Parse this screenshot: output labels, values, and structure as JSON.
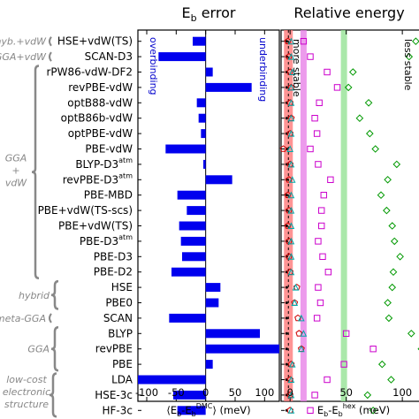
{
  "chart_data": [
    {
      "type": "bar",
      "orientation": "horizontal",
      "title": "E_b error",
      "title_main": "E",
      "title_sub": "b",
      "title_rest": " error",
      "xlabel": "⟨E_b-E_b^DMC⟩ (meV)",
      "xlabel_parts": [
        "⟨E",
        "b",
        "-E",
        "b",
        "DMC",
        "⟩ (meV)"
      ],
      "xlim": [
        -115,
        125
      ],
      "xticks": [
        -100,
        -50,
        0,
        50,
        100
      ],
      "xtick_labels": [
        "-100",
        "-50",
        "0",
        "50",
        "100"
      ],
      "annotations": [
        "overbinding",
        "underbinding"
      ],
      "color": "#0000ee",
      "categories": [
        "HSE+vdW(TS)",
        "SCAN-D3",
        "rPW86-vdW-DF2",
        "revPBE-vdW",
        "optB88-vdW",
        "optB86b-vdW",
        "optPBE-vdW",
        "PBE-vdW",
        "BLYP-D3",
        "revPBE-D3",
        "PBE-MBD",
        "PBE+vdW(TS-scs)",
        "PBE+vdW(TS)",
        "PBE-D3",
        "PBE-D3",
        "PBE-D2",
        "HSE",
        "PBE0",
        "SCAN",
        "BLYP",
        "revPBE",
        "PBE",
        "LDA",
        "HSE-3c",
        "HF-3c"
      ],
      "category_labels": [
        {
          "main": "HSE+vdW(TS)",
          "sup": ""
        },
        {
          "main": "SCAN-D3",
          "sup": ""
        },
        {
          "main": "rPW86-vdW-DF2",
          "sup": ""
        },
        {
          "main": "revPBE-vdW",
          "sup": ""
        },
        {
          "main": "optB88-vdW",
          "sup": ""
        },
        {
          "main": "optB86b-vdW",
          "sup": ""
        },
        {
          "main": "optPBE-vdW",
          "sup": ""
        },
        {
          "main": "PBE-vdW",
          "sup": ""
        },
        {
          "main": "BLYP-D3",
          "sup": "atm"
        },
        {
          "main": "revPBE-D3",
          "sup": "atm"
        },
        {
          "main": "PBE-MBD",
          "sup": ""
        },
        {
          "main": "PBE+vdW(TS-scs)",
          "sup": ""
        },
        {
          "main": "PBE+vdW(TS)",
          "sup": ""
        },
        {
          "main": "PBE-D3",
          "sup": "atm"
        },
        {
          "main": "PBE-D3",
          "sup": ""
        },
        {
          "main": "PBE-D2",
          "sup": ""
        },
        {
          "main": "HSE",
          "sup": ""
        },
        {
          "main": "PBE0",
          "sup": ""
        },
        {
          "main": "SCAN",
          "sup": ""
        },
        {
          "main": "BLYP",
          "sup": ""
        },
        {
          "main": "revPBE",
          "sup": ""
        },
        {
          "main": "PBE",
          "sup": ""
        },
        {
          "main": "LDA",
          "sup": ""
        },
        {
          "main": "HSE-3c",
          "sup": ""
        },
        {
          "main": "HF-3c",
          "sup": ""
        }
      ],
      "values": [
        -22,
        -80,
        12,
        78,
        -15,
        -12,
        -8,
        -68,
        -4,
        45,
        -48,
        -32,
        -45,
        -42,
        -40,
        -58,
        25,
        22,
        -62,
        92,
        125,
        12,
        -115,
        -55,
        -48
      ]
    },
    {
      "type": "scatter",
      "title": "Relative energy",
      "xlabel": "E_b-E_b^hex (meV)",
      "xlabel_parts": [
        "E",
        "b",
        "-E",
        "b",
        "hex",
        " (meV)"
      ],
      "xlim": [
        -8,
        118
      ],
      "xticks": [
        0,
        50,
        100
      ],
      "xtick_labels": [
        "0",
        "50",
        "100"
      ],
      "annotations": [
        "more stable",
        "less stable"
      ],
      "vertical_lines": [
        {
          "x": -1.5,
          "color": "#ff7070",
          "width": 10
        },
        {
          "x": 12,
          "color": "#e679e6",
          "width": 7
        },
        {
          "x": 48,
          "color": "#8ee08e",
          "width": 7
        }
      ],
      "series": [
        {
          "marker": "dot",
          "color": "#000000",
          "values": [
            -3,
            -3,
            -3,
            -3,
            -3,
            -3,
            -3,
            -3,
            -3,
            -3,
            -3,
            -3,
            -3,
            -3,
            -3,
            -3,
            -3,
            -3,
            -3,
            -3,
            -3,
            -3,
            -3,
            -3,
            -3
          ]
        },
        {
          "marker": "pentagon",
          "color": "#cc0000",
          "values": [
            -2,
            -1,
            0,
            1,
            0,
            1,
            0,
            -6,
            0,
            -1,
            -2,
            -1,
            -2,
            -1,
            -1,
            0,
            6,
            4,
            7,
            8,
            10,
            1,
            0,
            0,
            0
          ]
        },
        {
          "marker": "triangle",
          "color": "#00aaaa",
          "values": [
            1,
            1,
            2,
            1,
            1,
            1,
            1,
            0,
            1,
            2,
            1,
            1,
            1,
            1,
            1,
            1,
            5,
            4,
            10,
            12,
            10,
            2,
            1,
            1,
            1
          ]
        },
        {
          "marker": "square",
          "color": "#cc00cc",
          "values": [
            12,
            18,
            33,
            42,
            26,
            22,
            24,
            18,
            25,
            36,
            30,
            28,
            28,
            25,
            29,
            34,
            25,
            27,
            24,
            50,
            74,
            48,
            33,
            22,
            18
          ]
        },
        {
          "marker": "diamond",
          "color": "#009900",
          "values": [
            112,
            106,
            56,
            52,
            70,
            62,
            71,
            76,
            95,
            87,
            81,
            86,
            91,
            93,
            98,
            92,
            91,
            87,
            88,
            108,
            117,
            82,
            90,
            69,
            74
          ]
        }
      ]
    }
  ],
  "groups": [
    {
      "label": "hyb.+vdW",
      "from": 0,
      "to": 0
    },
    {
      "label": "GGA+vdW",
      "from": 1,
      "to": 1
    },
    {
      "label": "GGA",
      "label2": "+",
      "label3": "vdW",
      "from": 2,
      "to": 15
    },
    {
      "label": "hybrid",
      "from": 16,
      "to": 17
    },
    {
      "label": "meta-GGA",
      "from": 18,
      "to": 18
    },
    {
      "label": "GGA",
      "from": 19,
      "to": 21
    },
    {
      "label": "low-cost",
      "label2": "electronic",
      "label3": "structure",
      "from": 22,
      "to": 24
    }
  ]
}
